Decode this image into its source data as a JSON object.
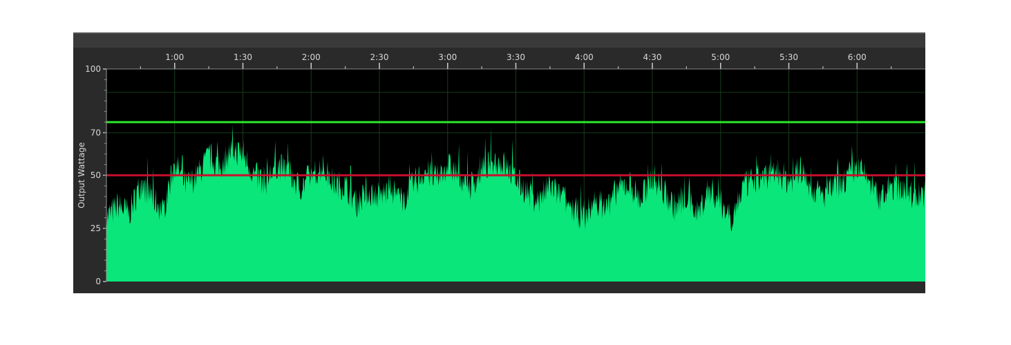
{
  "chart_data": {
    "type": "area",
    "title": "",
    "xlabel": "",
    "ylabel": "Output Wattage",
    "x_unit": "seconds",
    "xlim": [
      30,
      390
    ],
    "ylim": [
      0,
      100
    ],
    "x_ticks": [
      {
        "value": 60,
        "label": "1:00"
      },
      {
        "value": 90,
        "label": "1:30"
      },
      {
        "value": 120,
        "label": "2:00"
      },
      {
        "value": 150,
        "label": "2:30"
      },
      {
        "value": 180,
        "label": "3:00"
      },
      {
        "value": 210,
        "label": "3:30"
      },
      {
        "value": 240,
        "label": "4:00"
      },
      {
        "value": 270,
        "label": "4:30"
      },
      {
        "value": 300,
        "label": "5:00"
      },
      {
        "value": 330,
        "label": "5:30"
      },
      {
        "value": 360,
        "label": "6:00"
      }
    ],
    "y_ticks": [
      {
        "value": 0,
        "label": "0"
      },
      {
        "value": 25,
        "label": "25"
      },
      {
        "value": 50,
        "label": "50"
      },
      {
        "value": 70,
        "label": "70"
      },
      {
        "value": 100,
        "label": "100"
      }
    ],
    "grid": true,
    "reference_lines": [
      {
        "y": 75,
        "color": "#2ee82e"
      },
      {
        "y": 50,
        "color": "#c8102e"
      }
    ],
    "series": [
      {
        "color": "#0ae67a",
        "x": [
          30,
          35,
          40,
          45,
          50,
          55,
          60,
          65,
          70,
          75,
          80,
          85,
          90,
          95,
          100,
          105,
          110,
          115,
          120,
          125,
          130,
          135,
          140,
          145,
          150,
          155,
          160,
          165,
          170,
          175,
          180,
          185,
          190,
          195,
          200,
          205,
          210,
          215,
          220,
          225,
          230,
          235,
          240,
          245,
          250,
          255,
          260,
          265,
          270,
          275,
          280,
          285,
          290,
          295,
          300,
          305,
          310,
          315,
          320,
          325,
          330,
          335,
          340,
          345,
          350,
          355,
          360,
          365,
          370,
          375,
          380,
          385,
          390
        ],
        "values": [
          30,
          36,
          32,
          46,
          40,
          33,
          56,
          45,
          50,
          59,
          54,
          62,
          60,
          50,
          47,
          55,
          52,
          44,
          50,
          54,
          46,
          45,
          37,
          42,
          40,
          44,
          38,
          46,
          52,
          48,
          55,
          50,
          45,
          52,
          57,
          55,
          48,
          42,
          38,
          45,
          40,
          34,
          30,
          38,
          35,
          44,
          46,
          38,
          50,
          42,
          35,
          40,
          32,
          44,
          37,
          30,
          45,
          48,
          50,
          52,
          47,
          53,
          44,
          40,
          45,
          48,
          54,
          48,
          38,
          45,
          44,
          40,
          42
        ]
      }
    ]
  }
}
